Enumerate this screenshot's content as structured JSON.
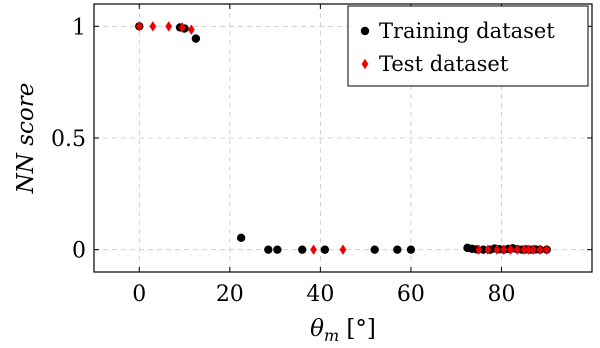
{
  "chart_data": {
    "type": "scatter",
    "title": "",
    "xlabel": {
      "symbol": "θ",
      "subscript": "m",
      "unit": "[°]"
    },
    "ylabel": "NN score",
    "xlim": [
      -10,
      100
    ],
    "ylim": [
      -0.1,
      1.1
    ],
    "xticks": [
      0,
      20,
      40,
      60,
      80
    ],
    "yticks": [
      0,
      0.5,
      1
    ],
    "grid": true,
    "legend_position": "top-right",
    "series": [
      {
        "name": "Training dataset",
        "marker": "circle",
        "color": "#000000",
        "points": [
          [
            0,
            1.0
          ],
          [
            9.0,
            0.995
          ],
          [
            10.0,
            0.99
          ],
          [
            12.5,
            0.945
          ],
          [
            22.5,
            0.053
          ],
          [
            28.5,
            0.0
          ],
          [
            30.5,
            0.0
          ],
          [
            36.0,
            0.0
          ],
          [
            41.0,
            0.0
          ],
          [
            52.0,
            0.0
          ],
          [
            57.0,
            0.0
          ],
          [
            60.0,
            0.0
          ],
          [
            72.5,
            0.008
          ],
          [
            73.5,
            0.004
          ],
          [
            74.5,
            0.001
          ],
          [
            76.0,
            0.0
          ],
          [
            77.5,
            0.0
          ],
          [
            78.5,
            0.005
          ],
          [
            79.5,
            0.002
          ],
          [
            80.5,
            0.0
          ],
          [
            81.5,
            0.003
          ],
          [
            82.5,
            0.006
          ],
          [
            83.5,
            0.002
          ],
          [
            84.5,
            0.0
          ],
          [
            85.5,
            0.001
          ],
          [
            86.5,
            0.0
          ],
          [
            87.5,
            0.001
          ],
          [
            88.5,
            0.0
          ],
          [
            90.0,
            0.0
          ]
        ]
      },
      {
        "name": "Test dataset",
        "marker": "diamond",
        "color": "#ee0000",
        "points": [
          [
            0,
            1.0
          ],
          [
            3.0,
            1.0
          ],
          [
            6.5,
            1.0
          ],
          [
            9.5,
            0.995
          ],
          [
            11.5,
            0.985
          ],
          [
            38.5,
            0.0
          ],
          [
            45.0,
            0.0
          ],
          [
            75.0,
            0.0
          ],
          [
            77.0,
            0.0
          ],
          [
            79.0,
            0.0
          ],
          [
            80.5,
            0.0
          ],
          [
            82.0,
            0.0
          ],
          [
            83.5,
            0.0
          ],
          [
            85.0,
            0.0
          ],
          [
            86.0,
            0.0
          ],
          [
            87.0,
            0.0
          ],
          [
            88.5,
            0.0
          ],
          [
            90.0,
            0.0
          ]
        ]
      }
    ]
  }
}
